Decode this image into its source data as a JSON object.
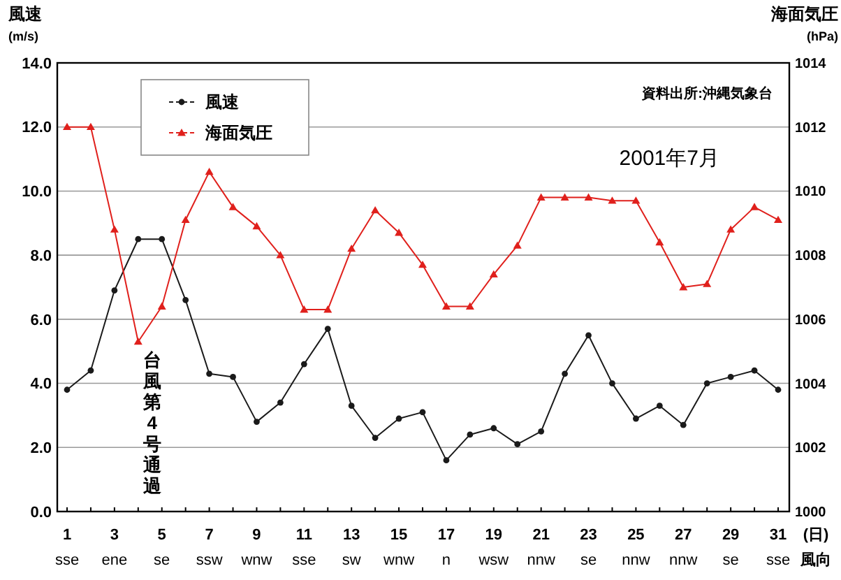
{
  "chart_data": {
    "type": "line",
    "categories": [
      "1\nsse",
      null,
      "3\nene",
      null,
      "5\nse",
      null,
      "7\nssw",
      null,
      "9\nwnw",
      null,
      "11\nsse",
      null,
      "13\nsw",
      null,
      "15\nwnw",
      null,
      "17\nn",
      null,
      "19\nwsw",
      null,
      "21\nnnw",
      null,
      "23\nse",
      null,
      "25\nnnw",
      null,
      "27\nnnw",
      null,
      "29\nse",
      null,
      "31\nsse"
    ],
    "xlabel": "(日)\n風向",
    "ylabel": "風速\n(m/s)",
    "y2label": "海面気圧\n(hPa)",
    "series": [
      {
        "name": "風速",
        "color": "#1a1a1a",
        "marker": "circle",
        "values": [
          3.8,
          4.4,
          6.9,
          8.5,
          8.5,
          6.6,
          4.3,
          4.2,
          2.8,
          3.4,
          4.6,
          5.7,
          3.3,
          2.3,
          2.9,
          3.1,
          1.6,
          2.4,
          2.6,
          2.1,
          2.5,
          4.3,
          5.5,
          4.0,
          2.9,
          3.3,
          2.7,
          4.0,
          4.2,
          4.4,
          3.8
        ]
      },
      {
        "name": "海面気圧",
        "color": "#e0201c",
        "marker": "triangle",
        "axis": "y2",
        "values": [
          1012.0,
          1012.0,
          1008.8,
          1005.3,
          1006.4,
          1009.1,
          1010.6,
          1009.5,
          1008.9,
          1008.0,
          1006.3,
          1006.3,
          1008.2,
          1009.4,
          1008.7,
          1007.7,
          1006.4,
          1006.4,
          1007.4,
          1008.3,
          1009.8,
          1009.8,
          1009.8,
          1009.7,
          1009.7,
          1008.4,
          1007.0,
          1007.1,
          1008.8,
          1009.5,
          1009.1
        ]
      }
    ],
    "ylim": [
      0,
      14
    ],
    "yticks": [
      {
        "value": 0,
        "label": "0.0"
      },
      {
        "value": 2,
        "label": "2.0"
      },
      {
        "value": 4,
        "label": "4.0"
      },
      {
        "value": 6,
        "label": "6.0"
      },
      {
        "value": 8,
        "label": "8.0"
      },
      {
        "value": 10,
        "label": "10.0"
      },
      {
        "value": 12,
        "label": "12.0"
      },
      {
        "value": 14,
        "label": "14.0"
      }
    ],
    "y2lim": [
      1000,
      1014
    ],
    "y2ticks": [
      1000,
      1002,
      1004,
      1006,
      1008,
      1010,
      1012,
      1014
    ],
    "grid": "y",
    "legend": "top left",
    "annotations": [
      "資料出所:沖縄気象台",
      "2001年7月",
      "台風第4号通過"
    ]
  }
}
